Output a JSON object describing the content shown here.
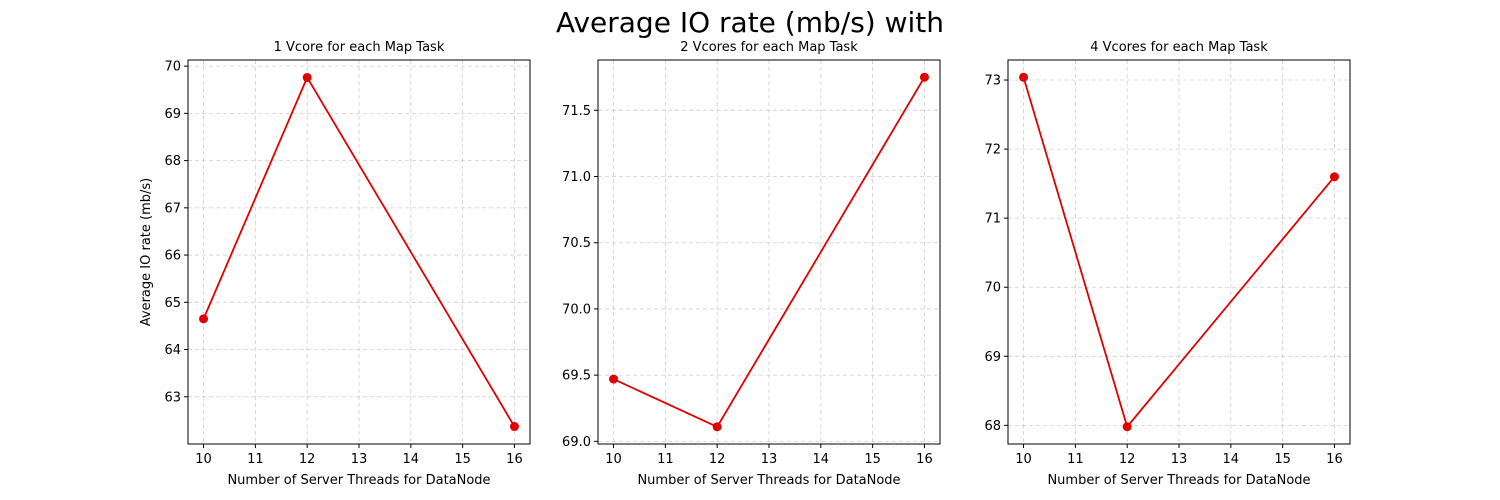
{
  "figure": {
    "suptitle": "Average IO rate (mb/s) with"
  },
  "chart_data": [
    {
      "type": "line",
      "title": "1 Vcore for each Map Task",
      "xlabel": "Number of Server Threads for DataNode",
      "ylabel": "Average IO rate (mb/s)",
      "x": [
        10,
        12,
        16
      ],
      "series": [
        {
          "values": [
            64.65,
            69.76,
            62.37
          ],
          "color": "#e00000",
          "marker": "circle"
        }
      ],
      "xlim": [
        9.7,
        16.3
      ],
      "ylim": [
        62.0,
        70.13
      ],
      "xticks": [
        10,
        11,
        12,
        13,
        14,
        15,
        16
      ],
      "yticks": [
        63,
        64,
        65,
        66,
        67,
        68,
        69,
        70
      ],
      "ytick_labels": [
        "63",
        "64",
        "65",
        "66",
        "67",
        "68",
        "69",
        "70"
      ],
      "grid": true
    },
    {
      "type": "line",
      "title": "2 Vcores for each Map Task",
      "xlabel": "Number of Server Threads for DataNode",
      "ylabel": "",
      "x": [
        10,
        12,
        16
      ],
      "series": [
        {
          "values": [
            69.47,
            69.11,
            71.75
          ],
          "color": "#e00000",
          "marker": "circle"
        }
      ],
      "xlim": [
        9.7,
        16.3
      ],
      "ylim": [
        68.98,
        71.88
      ],
      "xticks": [
        10,
        11,
        12,
        13,
        14,
        15,
        16
      ],
      "yticks": [
        69.0,
        69.5,
        70.0,
        70.5,
        71.0,
        71.5
      ],
      "ytick_labels": [
        "69.0",
        "69.5",
        "70.0",
        "70.5",
        "71.0",
        "71.5"
      ],
      "grid": true
    },
    {
      "type": "line",
      "title": "4 Vcores for each Map Task",
      "xlabel": "Number of Server Threads for DataNode",
      "ylabel": "",
      "x": [
        10,
        12,
        16
      ],
      "series": [
        {
          "values": [
            73.04,
            67.98,
            71.6
          ],
          "color": "#e00000",
          "marker": "circle"
        }
      ],
      "xlim": [
        9.7,
        16.3
      ],
      "ylim": [
        67.73,
        73.29
      ],
      "xticks": [
        10,
        11,
        12,
        13,
        14,
        15,
        16
      ],
      "yticks": [
        68,
        69,
        70,
        71,
        72,
        73
      ],
      "ytick_labels": [
        "68",
        "69",
        "70",
        "71",
        "72",
        "73"
      ],
      "grid": true
    }
  ]
}
